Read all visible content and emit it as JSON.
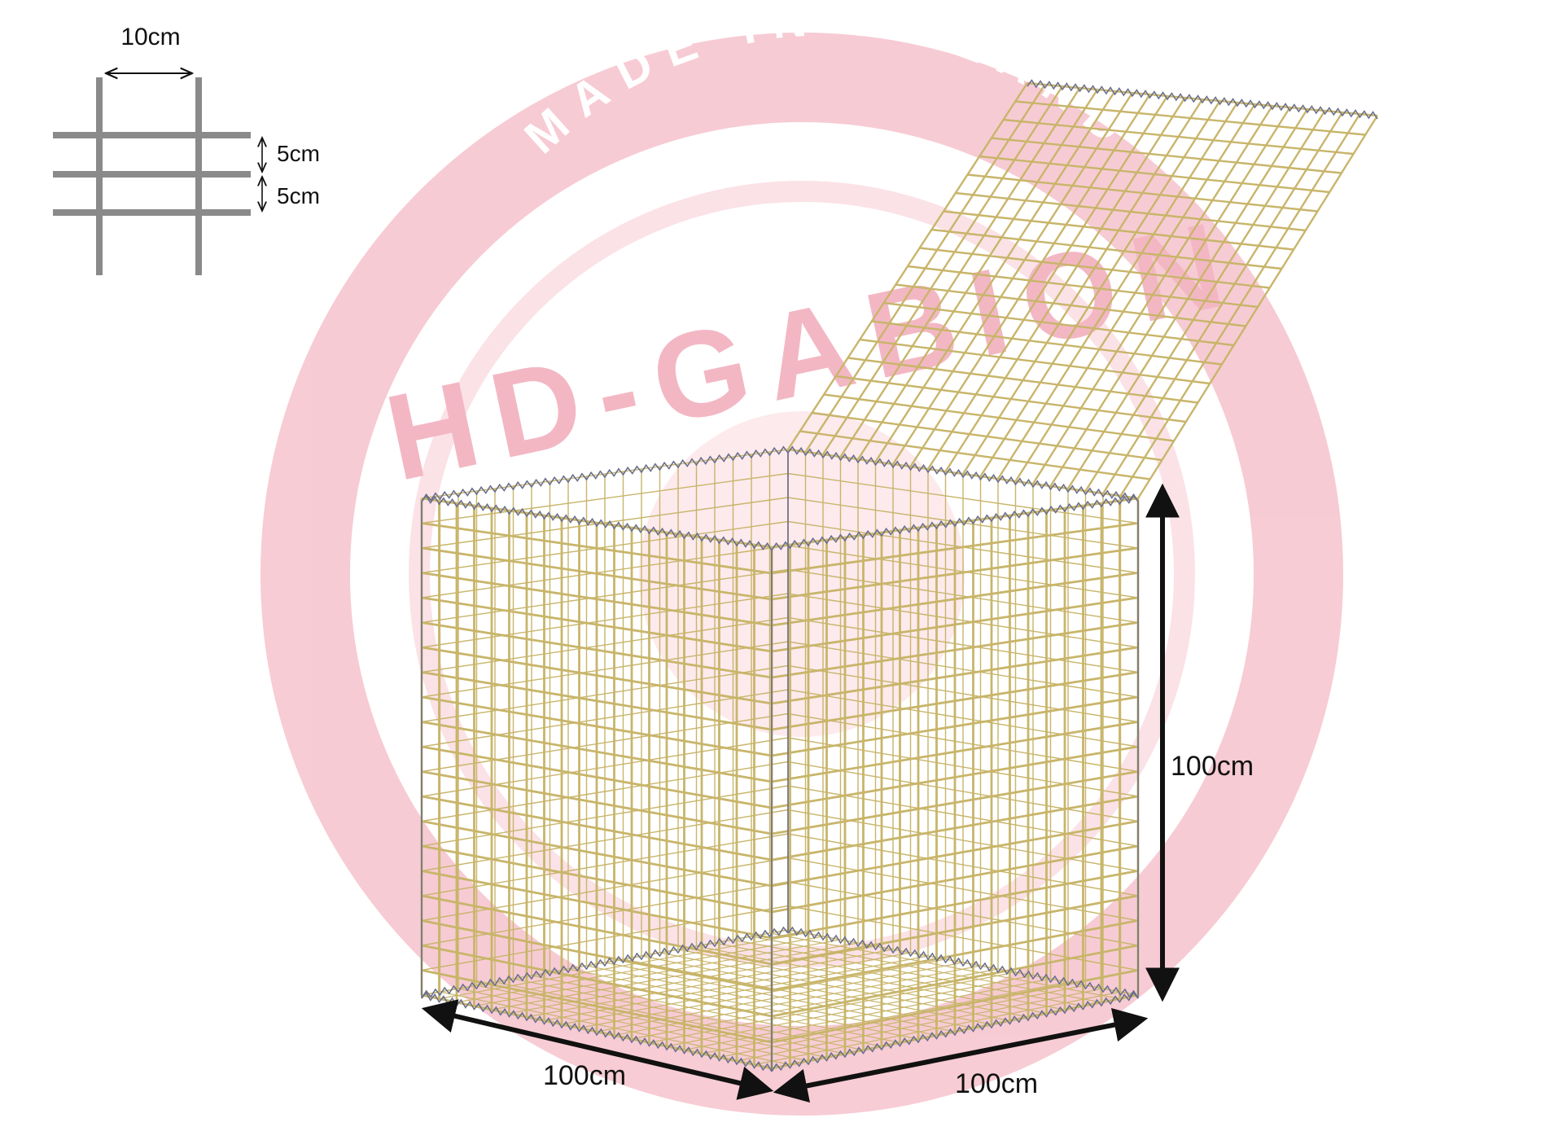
{
  "watermark": {
    "brand": "HD-GABION",
    "tagline": "MADE IN POLAND",
    "color": "#f7c9d2"
  },
  "mesh_detail": {
    "horizontal_spacing": "10cm",
    "vertical_spacing_1": "5cm",
    "vertical_spacing_2": "5cm"
  },
  "dimensions": {
    "height": "100cm",
    "width_left": "100cm",
    "width_right": "100cm"
  },
  "colors": {
    "wire": "#c8b56a",
    "spiral": "#6a6f8c",
    "arrow": "#111111",
    "mesh_detail_wire": "#8a8a8a"
  }
}
